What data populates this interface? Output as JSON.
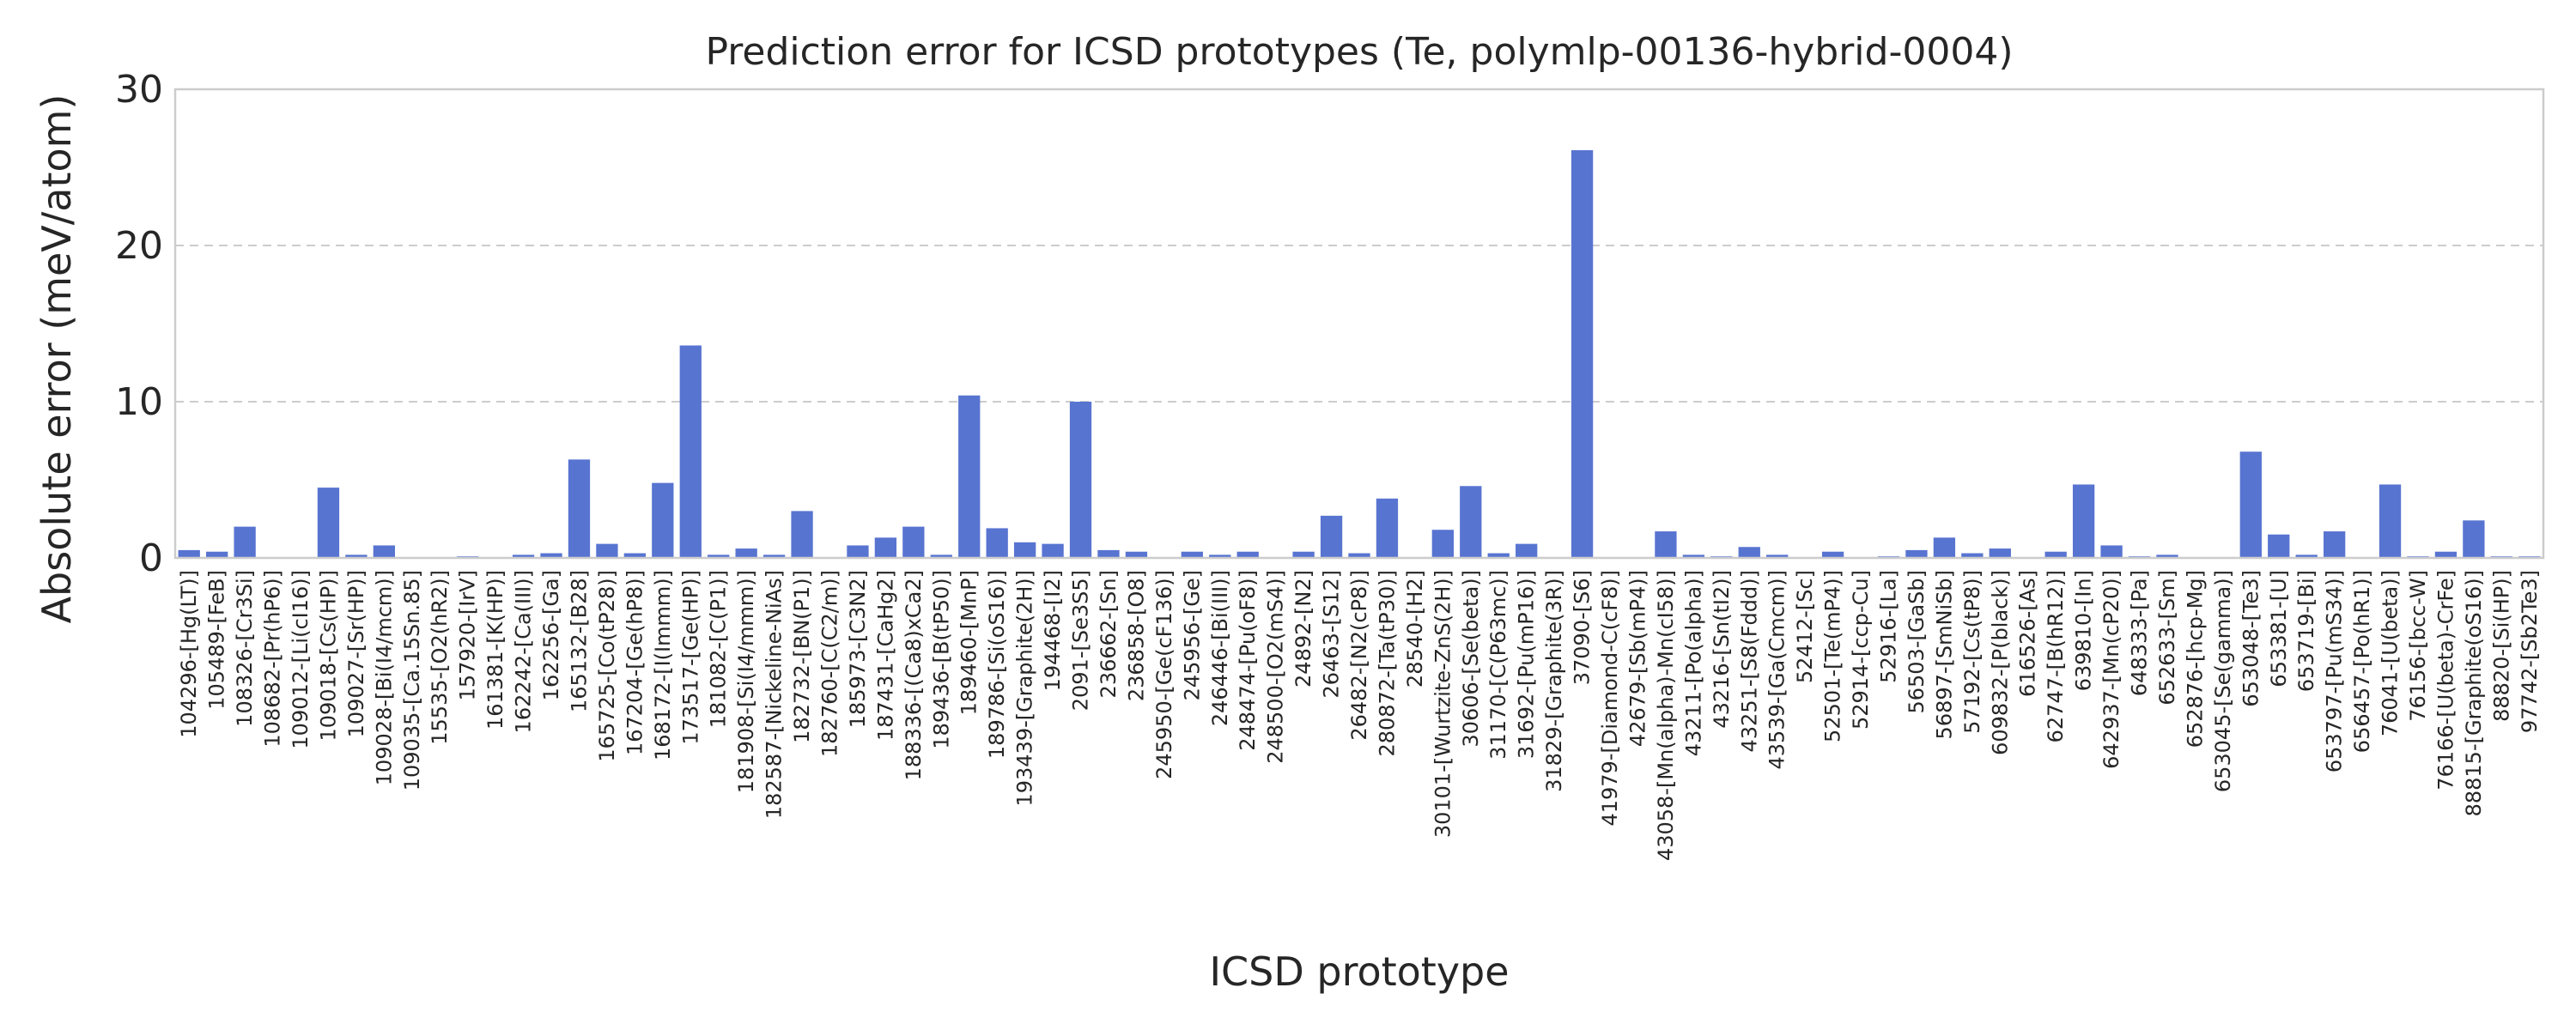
{
  "chart_data": {
    "type": "bar",
    "title": "Prediction error for ICSD prototypes (Te, polymlp-00136-hybrid-0004)",
    "xlabel": "ICSD prototype",
    "ylabel": "Absolute error (meV/atom)",
    "ylim": [
      0,
      30
    ],
    "yticks": [
      0,
      10,
      20,
      30
    ],
    "grid": "y-dashed",
    "bar_color": "#5874d1",
    "categories": [
      "104296-[Hg(LT)]",
      "105489-[FeB]",
      "108326-[Cr3Si]",
      "108682-[Pr(hP6)]",
      "109012-[Li(cI16)]",
      "109018-[Cs(HP)]",
      "109027-[Sr(HP)]",
      "109028-[Bi(I4/mcm)]",
      "109035-[Ca.15Sn.85]",
      "15535-[O2(hR2)]",
      "157920-[IrV]",
      "161381-[K(HP)]",
      "162242-[Ca(III)]",
      "162256-[Ga]",
      "165132-[B28]",
      "165725-[Co(tP28)]",
      "167204-[Ge(hP8)]",
      "168172-[I(Immm)]",
      "173517-[Ge(HP)]",
      "181082-[C(P1)]",
      "181908-[Si(I4/mmm)]",
      "182587-[Nickeline-NiAs]",
      "182732-[BN(P1)]",
      "182760-[C(C2/m)]",
      "185973-[C3N2]",
      "187431-[CaHg2]",
      "188336-[(Ca8)xCa2]",
      "189436-[B(tP50)]",
      "189460-[MnP]",
      "189786-[Si(oS16)]",
      "193439-[Graphite(2H)]",
      "194468-[I2]",
      "2091-[Se3S5]",
      "236662-[Sn]",
      "236858-[O8]",
      "245950-[Ge(cF136)]",
      "245956-[Ge]",
      "246446-[Bi(III)]",
      "248474-[Pu(oF8)]",
      "248500-[O2(mS4)]",
      "24892-[N2]",
      "26463-[S12]",
      "26482-[N2(cP8)]",
      "280872-[Ta(tP30)]",
      "28540-[H2]",
      "30101-[Wurtzite-ZnS(2H)]",
      "30606-[Se(beta)]",
      "31170-[C(P63mc)]",
      "31692-[Pu(mP16)]",
      "31829-[Graphite(3R)]",
      "37090-[S6]",
      "41979-[Diamond-C(cF8)]",
      "42679-[Sb(mP4)]",
      "43058-[Mn(alpha)-Mn(cI58)]",
      "43211-[Po(alpha)]",
      "43216-[Sn(tI2)]",
      "43251-[S8(Fddd)]",
      "43539-[Ga(Cmcm)]",
      "52412-[Sc]",
      "52501-[Te(mP4)]",
      "52914-[ccp-Cu]",
      "52916-[La]",
      "56503-[GaSb]",
      "56897-[SmNiSb]",
      "57192-[Cs(tP8)]",
      "609832-[P(black)]",
      "616526-[As]",
      "62747-[B(hR12)]",
      "639810-[In]",
      "642937-[Mn(cP20)]",
      "648333-[Pa]",
      "652633-[Sm]",
      "652876-[hcp-Mg]",
      "653045-[Se(gamma)]",
      "653048-[Te3]",
      "653381-[U]",
      "653719-[Bi]",
      "653797-[Pu(mS34)]",
      "656457-[Po(hR1)]",
      "76041-[U(beta)]",
      "76156-[bcc-W]",
      "76166-[U(beta)-CrFe]",
      "88815-[Graphite(oS16)]",
      "88820-[Si(HP)]",
      "97742-[Sb2Te3]"
    ],
    "values": [
      0.5,
      0.4,
      2.0,
      0.0,
      0.0,
      4.5,
      0.2,
      0.8,
      0.0,
      0.0,
      0.1,
      0.0,
      0.2,
      0.3,
      6.3,
      0.9,
      0.3,
      4.8,
      13.6,
      0.2,
      0.6,
      0.2,
      3.0,
      0.0,
      0.8,
      1.3,
      2.0,
      0.2,
      10.4,
      1.9,
      1.0,
      0.9,
      10.0,
      0.5,
      0.4,
      0.0,
      0.4,
      0.2,
      0.4,
      0.0,
      0.4,
      2.7,
      0.3,
      3.8,
      0.0,
      1.8,
      4.6,
      0.3,
      0.9,
      0.0,
      26.1,
      0.0,
      0.0,
      1.7,
      0.2,
      0.1,
      0.7,
      0.2,
      0.0,
      0.4,
      0.0,
      0.1,
      0.5,
      1.3,
      0.3,
      0.6,
      0.0,
      0.4,
      4.7,
      0.8,
      0.1,
      0.2,
      0.0,
      0.0,
      6.8,
      1.5,
      0.2,
      1.7,
      0.0,
      4.7,
      0.1,
      0.4,
      2.4,
      0.1,
      0.1
    ]
  }
}
